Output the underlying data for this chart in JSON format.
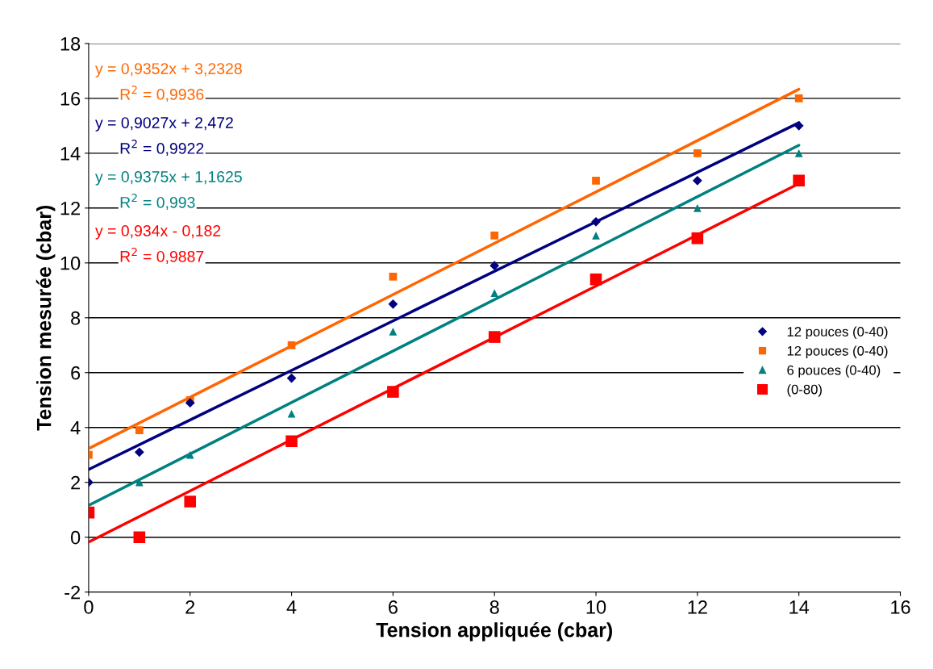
{
  "chart_data": {
    "type": "scatter",
    "xlabel": "Tension appliquée (cbar)",
    "ylabel": "Tension mesurée (cbar)",
    "xlim": [
      0,
      16
    ],
    "xticks": [
      0,
      2,
      4,
      6,
      8,
      10,
      12,
      14,
      16
    ],
    "ylim": [
      -2,
      18
    ],
    "yticks": [
      -2,
      0,
      2,
      4,
      6,
      8,
      10,
      12,
      14,
      16,
      18
    ],
    "grid": "y",
    "legend": "right",
    "series": [
      {
        "name": "12 pouces (0-40)",
        "color": "#000080",
        "marker": "diamond",
        "x": [
          0,
          1,
          2,
          4,
          6,
          8,
          10,
          12,
          14
        ],
        "values": [
          2,
          3.1,
          4.9,
          5.8,
          8.5,
          9.9,
          11.5,
          13,
          15
        ]
      },
      {
        "name": "12 pouces (0-40)",
        "color": "#ff6600",
        "marker": "square",
        "x": [
          0,
          1,
          2,
          4,
          6,
          8,
          10,
          12,
          14
        ],
        "values": [
          3,
          3.9,
          5.0,
          7.0,
          9.5,
          11,
          13,
          14,
          16
        ]
      },
      {
        "name": "6 pouces (0-40)",
        "color": "#008080",
        "marker": "triangle",
        "x": [
          1,
          2,
          4,
          6,
          8,
          10,
          12,
          14
        ],
        "values": [
          2,
          3,
          4.5,
          7.5,
          8.9,
          11,
          12,
          14
        ]
      },
      {
        "name": "(0-80)",
        "color": "#ff0000",
        "marker": "square",
        "x": [
          0,
          1,
          2,
          4,
          6,
          8,
          10,
          12,
          14
        ],
        "values": [
          0.9,
          0,
          1.3,
          3.5,
          5.3,
          7.3,
          9.4,
          10.9,
          13
        ]
      },
      {
        "type": "line",
        "color": "#ff6600",
        "x": [
          0,
          14
        ],
        "values": [
          3.23,
          16.33
        ]
      },
      {
        "type": "line",
        "color": "#000080",
        "x": [
          0,
          14
        ],
        "values": [
          2.47,
          15.11
        ]
      },
      {
        "type": "line",
        "color": "#008080",
        "x": [
          0,
          14
        ],
        "values": [
          1.16,
          14.29
        ]
      },
      {
        "type": "line",
        "color": "#ff0000",
        "x": [
          0,
          14
        ],
        "values": [
          -0.18,
          12.89
        ]
      }
    ],
    "annotations": [
      "y = 0,9352x + 3,2328",
      "R$^{2}$ = 0,9936",
      "y = 0,9027x + 2,472",
      "R$^{2}$ = 0,9922",
      "y = 0,9375x + 1,1625",
      "R$^{2}$ = 0,993",
      "y = 0,934x - 0,182",
      "R$^{2}$ = 0,9887"
    ]
  }
}
